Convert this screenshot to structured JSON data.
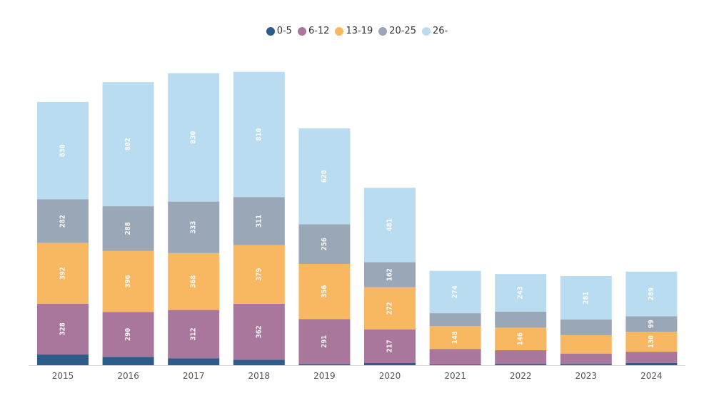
{
  "chart_data": {
    "type": "bar",
    "stacked": true,
    "categories": [
      "2015",
      "2016",
      "2017",
      "2018",
      "2019",
      "2020",
      "2021",
      "2022",
      "2023",
      "2024"
    ],
    "series": [
      {
        "name": "0-5",
        "color": "#2d5b8a",
        "values": [
          70,
          54,
          45,
          35,
          8,
          15,
          5,
          7,
          8,
          15
        ]
      },
      {
        "name": "6-12",
        "color": "#a9779b",
        "values": [
          328,
          290,
          312,
          362,
          291,
          217,
          100,
          90,
          67,
          72
        ]
      },
      {
        "name": "13-19",
        "color": "#f8b761",
        "values": [
          392,
          396,
          368,
          379,
          356,
          272,
          148,
          146,
          119,
          130
        ]
      },
      {
        "name": "20-25",
        "color": "#9aa7b6",
        "values": [
          282,
          288,
          333,
          311,
          256,
          162,
          83,
          104,
          101,
          99
        ]
      },
      {
        "name": "26-",
        "color": "#b9dcf0",
        "values": [
          630,
          802,
          830,
          810,
          620,
          481,
          274,
          243,
          281,
          289
        ]
      }
    ],
    "segment_labels": [
      [
        null,
        null,
        null,
        null,
        null,
        null,
        null,
        null,
        null,
        null
      ],
      [
        "328",
        "290",
        "312",
        "362",
        "291",
        "217",
        null,
        null,
        null,
        null
      ],
      [
        "392",
        "396",
        "368",
        "379",
        "356",
        "272",
        "148",
        "146",
        null,
        "130"
      ],
      [
        "282",
        "288",
        "333",
        "311",
        "256",
        "162",
        null,
        null,
        null,
        "99"
      ],
      [
        "630",
        "802",
        "830",
        "810",
        "620",
        "481",
        "274",
        "243",
        "281",
        "289"
      ]
    ],
    "ylim": [
      0,
      1900
    ],
    "grid": false,
    "legend_position": "top-center",
    "xlabel": "",
    "ylabel": "",
    "title": ""
  }
}
